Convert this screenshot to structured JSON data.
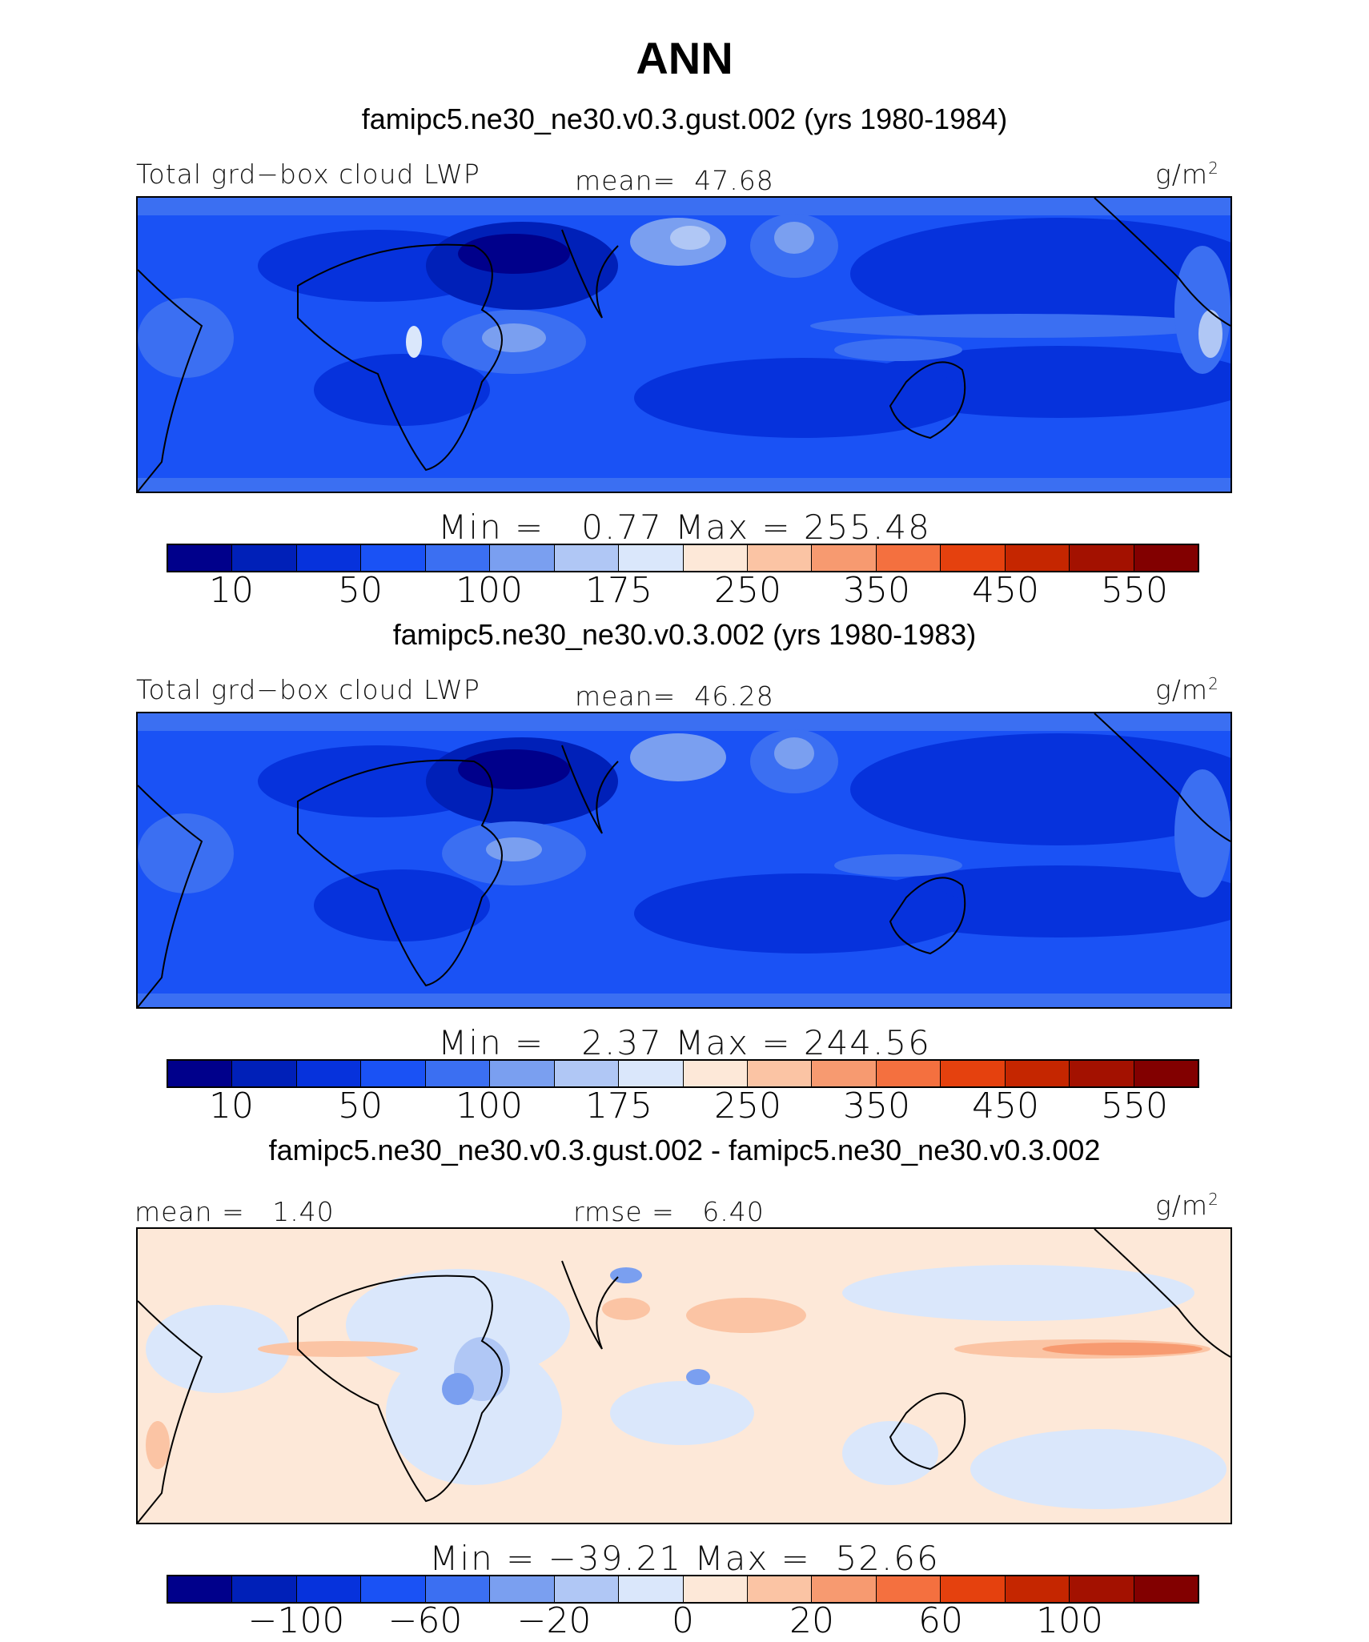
{
  "title": "ANN",
  "colors": {
    "abs_levels": [
      "#00008b",
      "#0020b8",
      "#0632dc",
      "#1a52f5",
      "#3b6ff2",
      "#7a9ff0",
      "#b0c7f5",
      "#dae7fb",
      "#fde8d8",
      "#fbc4a4",
      "#f79a70",
      "#f4703f",
      "#e5410e",
      "#c52600",
      "#a31100",
      "#820000"
    ],
    "diff_levels": [
      "#00008b",
      "#0020b8",
      "#0632dc",
      "#1a52f5",
      "#3b6ff2",
      "#7a9ff0",
      "#b0c7f5",
      "#dae7fb",
      "#fde8d8",
      "#fbc4a4",
      "#f79a70",
      "#f4703f",
      "#e5410e",
      "#c52600",
      "#a31100",
      "#820000"
    ]
  },
  "panels": [
    {
      "case_title": "famipc5.ne30_ne30.v0.3.gust.002 (yrs 1980-1984)",
      "left_label": "Total grd−box cloud LWP",
      "center_label": "mean=  47.68",
      "units": "g/m",
      "units_sup": "2",
      "minmax": "Min =   0.77 Max = 255.48",
      "ticks": [
        "10",
        "50",
        "100",
        "175",
        "250",
        "350",
        "450",
        "550"
      ]
    },
    {
      "case_title": "famipc5.ne30_ne30.v0.3.002 (yrs 1980-1983)",
      "left_label": "Total grd−box cloud LWP",
      "center_label": "mean=  46.28",
      "units": "g/m",
      "units_sup": "2",
      "minmax": "Min =   2.37 Max = 244.56",
      "ticks": [
        "10",
        "50",
        "100",
        "175",
        "250",
        "350",
        "450",
        "550"
      ]
    },
    {
      "case_title": "famipc5.ne30_ne30.v0.3.gust.002 - famipc5.ne30_ne30.v0.3.002",
      "left_label": "mean =   1.40",
      "center_label": "rmse =   6.40",
      "units": "g/m",
      "units_sup": "2",
      "minmax": "Min = −39.21 Max =  52.66",
      "ticks": [
        "−100",
        "−60",
        "−20",
        "0",
        "20",
        "60",
        "100"
      ]
    }
  ]
}
